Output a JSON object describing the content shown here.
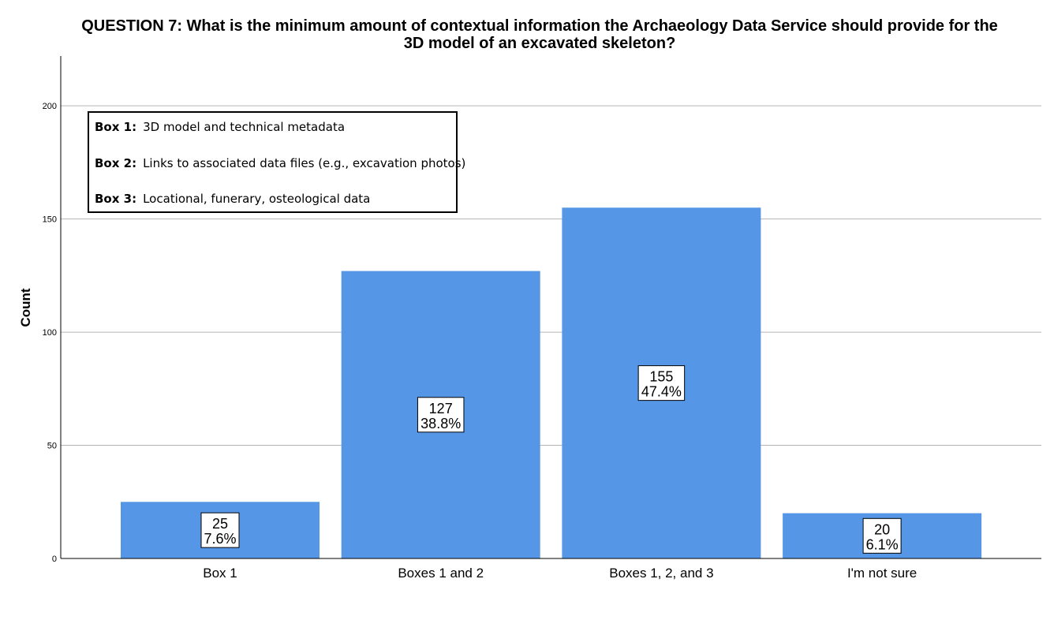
{
  "title_lines": [
    "QUESTION 7: What is the minimum amount of contextual information the Archaeology Data Service should provide for the",
    "3D model of an excavated skeleton?"
  ],
  "legend": [
    {
      "key": "Box 1:",
      "text": "3D model and technical metadata"
    },
    {
      "key": "Box 2:",
      "text": "Links to associated data files (e.g., excavation photos)"
    },
    {
      "key": "Box 3:",
      "text": "Locational, funerary, osteological data"
    }
  ],
  "chart_data": {
    "type": "bar",
    "title": "QUESTION 7: What is the minimum amount of contextual information the Archaeology Data Service should provide for the 3D model of an excavated skeleton?",
    "xlabel": "",
    "ylabel": "Count",
    "categories": [
      "Box 1",
      "Boxes 1 and 2",
      "Boxes 1, 2, and 3",
      "I'm not sure"
    ],
    "values": [
      25,
      127,
      155,
      20
    ],
    "percent_labels": [
      "7.6%",
      "38.8%",
      "47.4%",
      "6.1%"
    ],
    "yticks": [
      0,
      50,
      100,
      150,
      200
    ],
    "ylim": [
      0,
      222
    ],
    "grid": true,
    "bar_color": "#5596e6"
  }
}
